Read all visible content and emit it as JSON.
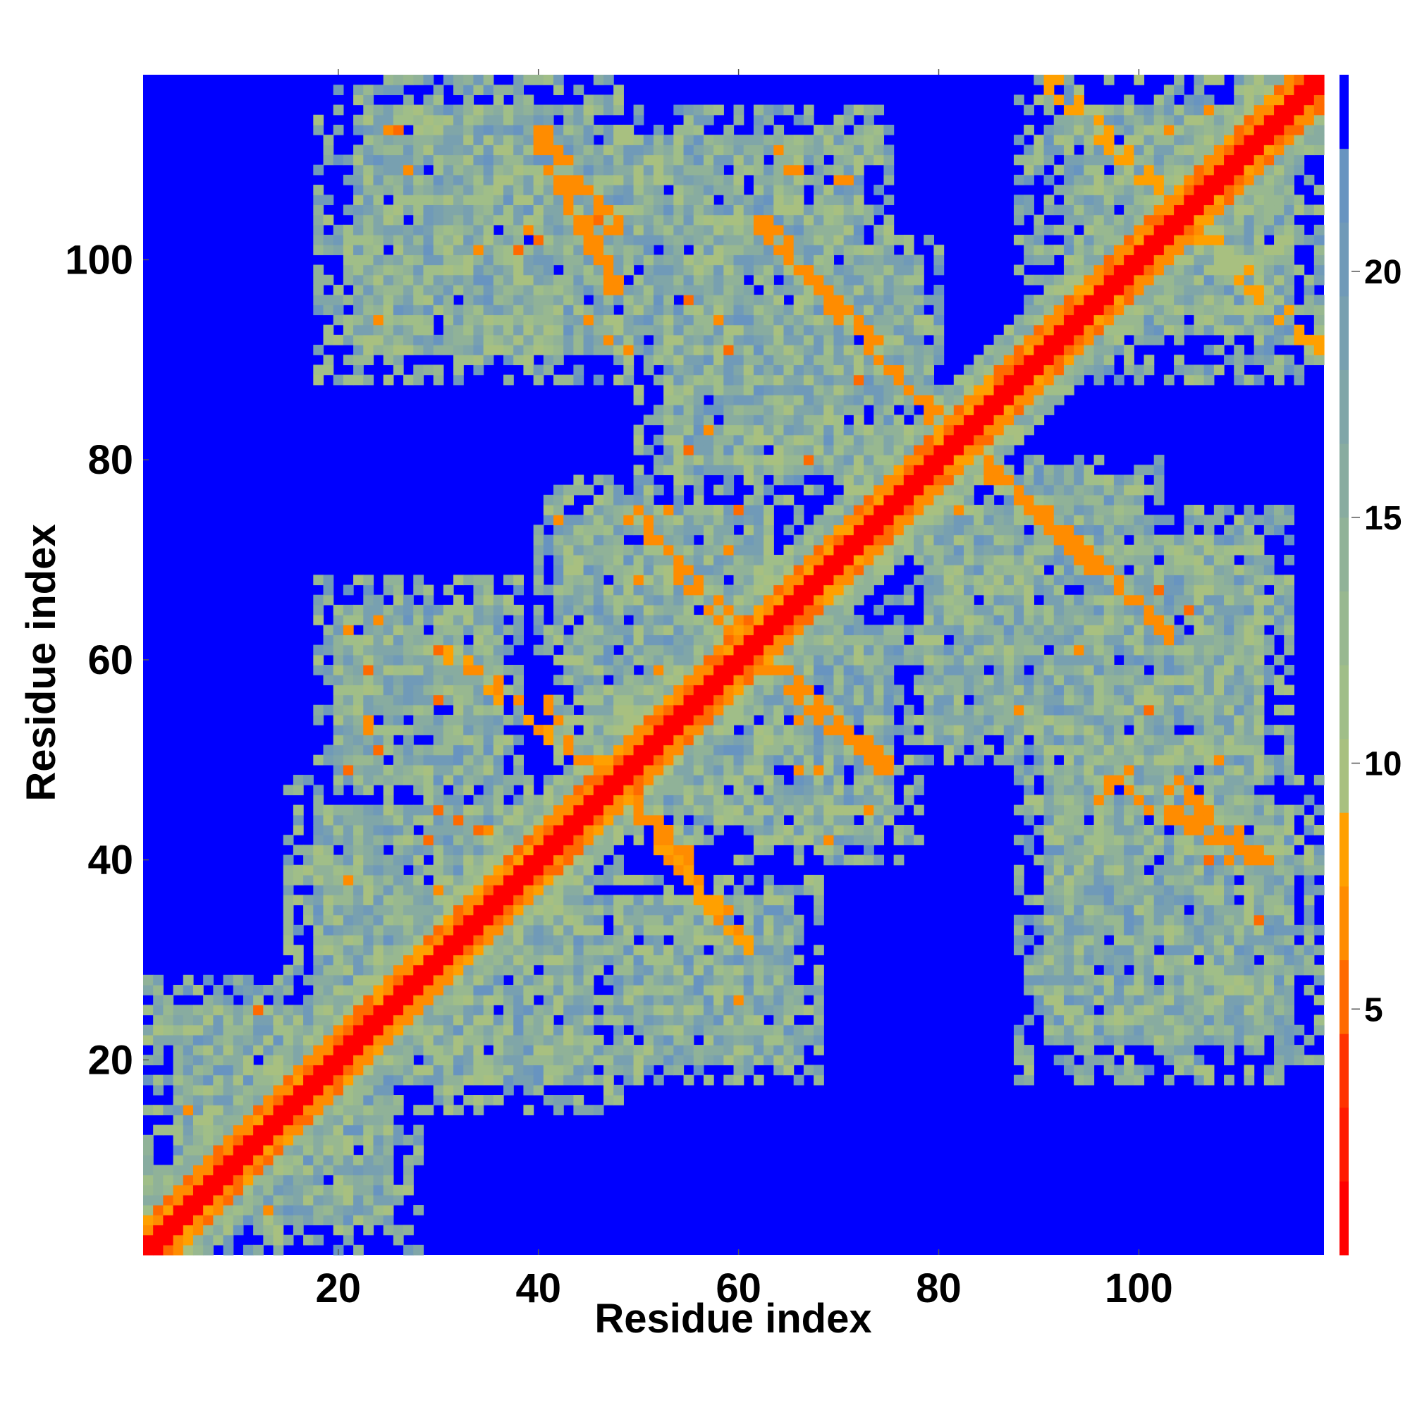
{
  "chart_data": {
    "type": "heatmap",
    "title": "",
    "xlabel": "Residue index",
    "ylabel": "Residue index",
    "n_residues": 118,
    "xlim": [
      1,
      118
    ],
    "ylim": [
      1,
      118
    ],
    "x_ticks": [
      20,
      40,
      60,
      80,
      100
    ],
    "y_ticks": [
      20,
      40,
      60,
      80,
      100
    ],
    "matrix_symmetric": true,
    "colorbar": {
      "range": [
        0,
        24
      ],
      "ticks": [
        5,
        10,
        15,
        20
      ],
      "bands": [
        {
          "from": 0,
          "to": 1.5,
          "color": "#ff0000"
        },
        {
          "from": 1.5,
          "to": 3,
          "color": "#ff1a00"
        },
        {
          "from": 3,
          "to": 4.5,
          "color": "#ff3300"
        },
        {
          "from": 4.5,
          "to": 6,
          "color": "#ff6a00"
        },
        {
          "from": 6,
          "to": 7.5,
          "color": "#ff8c00"
        },
        {
          "from": 7.5,
          "to": 9,
          "color": "#ffa000"
        },
        {
          "from": 9,
          "to": 10.5,
          "color": "#a8c080"
        },
        {
          "from": 10.5,
          "to": 12,
          "color": "#a0be88"
        },
        {
          "from": 12,
          "to": 13.5,
          "color": "#98b890"
        },
        {
          "from": 13.5,
          "to": 15,
          "color": "#90b298"
        },
        {
          "from": 15,
          "to": 16.5,
          "color": "#88aca0"
        },
        {
          "from": 16.5,
          "to": 18,
          "color": "#80a6a8"
        },
        {
          "from": 18,
          "to": 19.5,
          "color": "#78a0b0"
        },
        {
          "from": 19.5,
          "to": 21,
          "color": "#709ab8"
        },
        {
          "from": 21,
          "to": 22.5,
          "color": "#6894c0"
        },
        {
          "from": 22.5,
          "to": 24,
          "color": "#0000ff"
        }
      ]
    },
    "diagonal_band": {
      "core_width": 1.2,
      "near_width": 3.5,
      "outer_width": 6
    },
    "regions": [
      {
        "a": [
          1,
          28
        ],
        "b": [
          1,
          28
        ],
        "level": "high"
      },
      {
        "a": [
          15,
          48
        ],
        "b": [
          24,
          48
        ],
        "level": "high"
      },
      {
        "a": [
          18,
          38
        ],
        "b": [
          45,
          68
        ],
        "level": "mid"
      },
      {
        "a": [
          42,
          66
        ],
        "b": [
          48,
          78
        ],
        "level": "mid"
      },
      {
        "a": [
          40,
          55
        ],
        "b": [
          60,
          76
        ],
        "level": "mid"
      },
      {
        "a": [
          20,
          48
        ],
        "b": [
          92,
          118
        ],
        "level": "mid"
      },
      {
        "a": [
          45,
          75
        ],
        "b": [
          88,
          115
        ],
        "level": "mid"
      },
      {
        "a": [
          58,
          80
        ],
        "b": [
          86,
          102
        ],
        "level": "mid"
      },
      {
        "a": [
          77,
          98
        ],
        "b": [
          50,
          78
        ],
        "level": "mid"
      },
      {
        "a": [
          88,
          114
        ],
        "b": [
          18,
          58
        ],
        "level": "mid"
      },
      {
        "a": [
          90,
          116
        ],
        "b": [
          88,
          118
        ],
        "level": "mid"
      }
    ],
    "contact_lines": [
      {
        "from": [
          40,
          113
        ],
        "to": [
          48,
          103
        ],
        "value": 6
      },
      {
        "from": [
          63,
          103
        ],
        "to": [
          80,
          84
        ],
        "value": 6
      },
      {
        "from": [
          49,
          75
        ],
        "to": [
          60,
          63
        ],
        "value": 6
      },
      {
        "from": [
          61,
          61
        ],
        "to": [
          75,
          49
        ],
        "value": 6
      },
      {
        "from": [
          82,
          82
        ],
        "to": [
          104,
          62
        ],
        "value": 6
      },
      {
        "from": [
          97,
          48
        ],
        "to": [
          112,
          40
        ],
        "value": 6
      },
      {
        "from": [
          48,
          46
        ],
        "to": [
          56,
          40
        ],
        "value": 6
      },
      {
        "from": [
          31,
          61
        ],
        "to": [
          46,
          49
        ],
        "value": 7
      },
      {
        "from": [
          91,
          118
        ],
        "to": [
          118,
          91
        ],
        "value": 8
      }
    ],
    "grid": false,
    "legend": "colorbar-right"
  }
}
